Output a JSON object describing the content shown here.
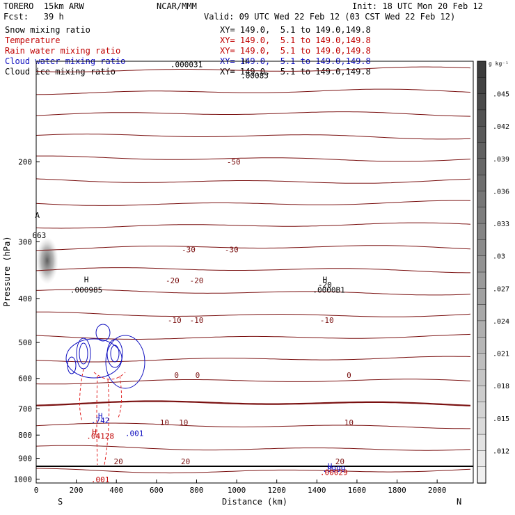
{
  "header": {
    "model": "TORERO  15km ARW",
    "center": "NCAR/MMM",
    "init": "Init: 18 UTC Mon 20 Feb 12",
    "fcst": "Fcst:   39 h",
    "valid": "Valid: 09 UTC Wed 22 Feb 12 (03 CST Wed 22 Feb 12)"
  },
  "fields": [
    {
      "name": "Snow mixing ratio",
      "xy": "XY= 149.0,  5.1 to 149.0,149.8",
      "color": "#000000"
    },
    {
      "name": "Temperature",
      "xy": "XY= 149.0,  5.1 to 149.0,149.8",
      "color": "#c00000"
    },
    {
      "name": "Rain water mixing ratio",
      "xy": "XY= 149.0,  5.1 to 149.0,149.8",
      "color": "#c00000"
    },
    {
      "name": "Cloud water mixing ratio",
      "xy": "XY= 149.0,  5.1 to 149.0,149.8",
      "color": "#1010c0"
    },
    {
      "name": "Cloud ice mixing ratio",
      "xy": "XY= 149.0,  5.1 to 149.0,149.8",
      "color": "#000000"
    }
  ],
  "chart_data": {
    "type": "contour",
    "xlabel": "Distance (km)",
    "ylabel": "Pressure (hPa)",
    "xlim": [
      0,
      2180
    ],
    "ylim": [
      1020,
      120
    ],
    "y_log": true,
    "x_ticks": [
      0,
      200,
      400,
      600,
      800,
      1000,
      1200,
      1400,
      1600,
      1800,
      2000
    ],
    "y_ticks": [
      200,
      300,
      400,
      500,
      600,
      700,
      800,
      900,
      1000
    ],
    "x_ends": {
      "left": "S",
      "right": "N"
    },
    "colorbar": {
      "unit": "g kg⁻¹",
      "labels": [
        ".045",
        ".042",
        ".039",
        ".036",
        ".033",
        ".03",
        ".027",
        ".024",
        ".021",
        ".018",
        ".015",
        ".012"
      ],
      "values": [
        0.045,
        0.042,
        0.039,
        0.036,
        0.033,
        0.03,
        0.027,
        0.024,
        0.021,
        0.018,
        0.015,
        0.012
      ],
      "range": [
        0.009,
        0.048
      ]
    },
    "temperature_contour_labels": [
      {
        "text": "-50",
        "x": 985,
        "p": 200
      },
      {
        "text": "-30",
        "x": 760,
        "p": 312
      },
      {
        "text": "-30",
        "x": 975,
        "p": 312
      },
      {
        "text": "-20",
        "x": 680,
        "p": 365
      },
      {
        "text": "-20",
        "x": 800,
        "p": 365
      },
      {
        "text": "-10",
        "x": 690,
        "p": 446
      },
      {
        "text": "-10",
        "x": 800,
        "p": 446
      },
      {
        "text": "-10",
        "x": 1450,
        "p": 446
      },
      {
        "text": "0",
        "x": 700,
        "p": 590
      },
      {
        "text": "0",
        "x": 805,
        "p": 590
      },
      {
        "text": "0",
        "x": 1560,
        "p": 590
      },
      {
        "text": "10",
        "x": 640,
        "p": 750
      },
      {
        "text": "10",
        "x": 735,
        "p": 750
      },
      {
        "text": "10",
        "x": 1560,
        "p": 750
      },
      {
        "text": "20",
        "x": 410,
        "p": 914
      },
      {
        "text": "20",
        "x": 745,
        "p": 914
      },
      {
        "text": "20",
        "x": 1515,
        "p": 914
      }
    ],
    "extrema_labels": [
      {
        "text": "H",
        "x": 250,
        "p": 363,
        "color": "#000000"
      },
      {
        "text": ".000985",
        "x": 250,
        "p": 383,
        "color": "#000000"
      },
      {
        "text": "H",
        "x": 1440,
        "p": 363,
        "color": "#000000"
      },
      {
        "text": "-20",
        "x": 1440,
        "p": 373,
        "color": "#000000"
      },
      {
        "text": ".0000B1",
        "x": 1460,
        "p": 383,
        "color": "#000000"
      },
      {
        "text": ".000031",
        "x": 750,
        "p": 122,
        "color": "#000000"
      },
      {
        "text": "H",
        "x": 1040,
        "p": 120,
        "color": "#000000"
      },
      {
        "text": ".00085",
        "x": 1090,
        "p": 129,
        "color": "#000000"
      },
      {
        "text": "A",
        "x": 6,
        "p": 262,
        "color": "#000000"
      },
      {
        "text": "663",
        "x": 15,
        "p": 290,
        "color": "#000000"
      },
      {
        "text": "H",
        "x": 320,
        "p": 725,
        "color": "#1010c0"
      },
      {
        "text": ".742",
        "x": 320,
        "p": 742,
        "color": "#1010c0"
      },
      {
        "text": ".001",
        "x": 490,
        "p": 793,
        "color": "#1010c0"
      },
      {
        "text": "H",
        "x": 290,
        "p": 787,
        "color": "#c00000"
      },
      {
        "text": ".04128",
        "x": 320,
        "p": 803,
        "color": "#c00000"
      },
      {
        "text": ".001",
        "x": 320,
        "p": 1003,
        "color": "#c00000"
      },
      {
        "text": "H",
        "x": 1465,
        "p": 936,
        "color": "#1010c0"
      },
      {
        "text": ".8999",
        "x": 1485,
        "p": 951,
        "color": "#1010c0"
      },
      {
        "text": ".00029",
        "x": 1485,
        "p": 965,
        "color": "#c00000"
      }
    ]
  }
}
